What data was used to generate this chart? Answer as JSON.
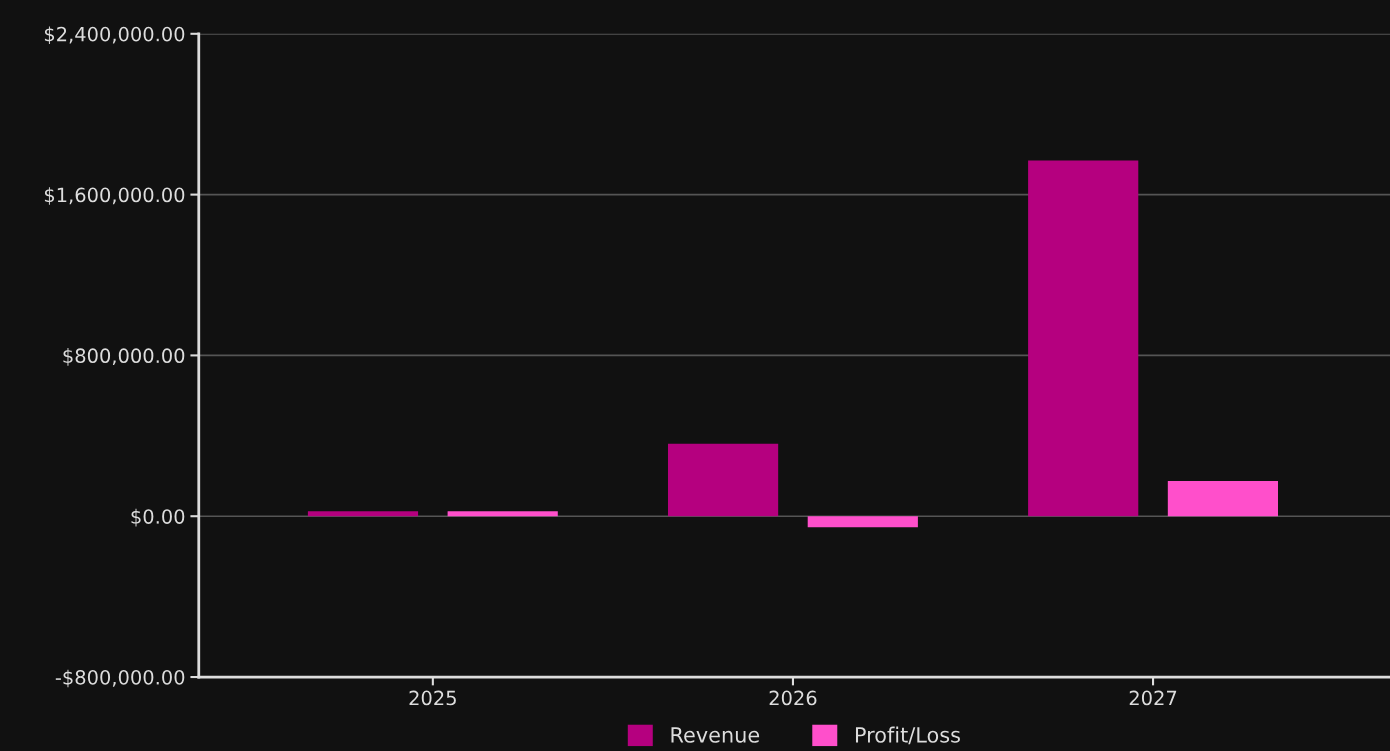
{
  "chart_data": {
    "type": "bar",
    "categories": [
      "2025",
      "2026",
      "2027"
    ],
    "series": [
      {
        "name": "Revenue",
        "color": "#b5007f",
        "values": [
          25000,
          360000,
          1770000
        ]
      },
      {
        "name": "Profit/Loss",
        "color": "#ff4fcb",
        "values": [
          25000,
          -55000,
          175000
        ]
      }
    ],
    "ylim": [
      -800000,
      2400000
    ],
    "yticks": [
      {
        "value": -800000,
        "label": "-$800,000.00"
      },
      {
        "value": 0,
        "label": "$0.00"
      },
      {
        "value": 800000,
        "label": "$800,000.00"
      },
      {
        "value": 1600000,
        "label": "$1,600,000.00"
      },
      {
        "value": 2400000,
        "label": "$2,400,000.00"
      }
    ],
    "grid": "y",
    "legend": "bottom"
  }
}
